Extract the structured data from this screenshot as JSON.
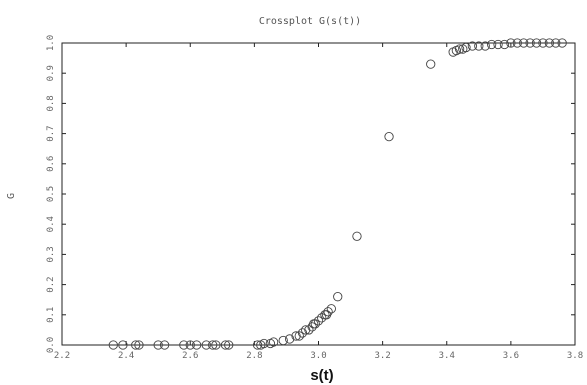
{
  "chart_data": {
    "type": "scatter",
    "title": "Crossplot G(s(t))",
    "xlabel": "s(t)",
    "ylabel": "G",
    "xlim": [
      2.2,
      3.8
    ],
    "ylim": [
      0,
      1
    ],
    "xticks": [
      "2.2",
      "2.4",
      "2.6",
      "2.8",
      "3.0",
      "3.2",
      "3.4",
      "3.6",
      "3.8"
    ],
    "yticks": [
      "0.0",
      "0.1",
      "0.2",
      "0.3",
      "0.4",
      "0.5",
      "0.6",
      "0.7",
      "0.8",
      "0.9",
      "1.0"
    ],
    "grid": false,
    "series": [
      {
        "marker": "open-circle",
        "color": "#444444",
        "x": [
          2.36,
          2.39,
          2.43,
          2.44,
          2.5,
          2.52,
          2.58,
          2.6,
          2.62,
          2.65,
          2.67,
          2.68,
          2.71,
          2.72,
          2.81,
          2.82,
          2.83,
          2.85,
          2.86,
          2.89,
          2.91,
          2.93,
          2.94,
          2.95,
          2.96,
          2.97,
          2.98,
          2.985,
          2.99,
          3.0,
          3.01,
          3.02,
          3.025,
          3.03,
          3.04,
          3.06,
          3.12,
          3.22,
          3.35,
          3.42,
          3.43,
          3.44,
          3.45,
          3.46,
          3.48,
          3.5,
          3.52,
          3.54,
          3.56,
          3.58,
          3.6,
          3.62,
          3.64,
          3.66,
          3.68,
          3.7,
          3.72,
          3.74,
          3.76
        ],
        "y": [
          0.0,
          0.0,
          0.0,
          0.0,
          0.0,
          0.0,
          0.0,
          0.0,
          0.0,
          0.0,
          0.0,
          0.0,
          0.0,
          0.0,
          0.0,
          0.0,
          0.005,
          0.005,
          0.01,
          0.015,
          0.02,
          0.03,
          0.03,
          0.04,
          0.05,
          0.05,
          0.06,
          0.07,
          0.07,
          0.08,
          0.09,
          0.1,
          0.1,
          0.11,
          0.12,
          0.16,
          0.36,
          0.69,
          0.93,
          0.97,
          0.975,
          0.98,
          0.98,
          0.985,
          0.99,
          0.99,
          0.99,
          0.995,
          0.995,
          0.995,
          1.0,
          1.0,
          1.0,
          1.0,
          1.0,
          1.0,
          1.0,
          1.0,
          1.0
        ]
      }
    ]
  }
}
